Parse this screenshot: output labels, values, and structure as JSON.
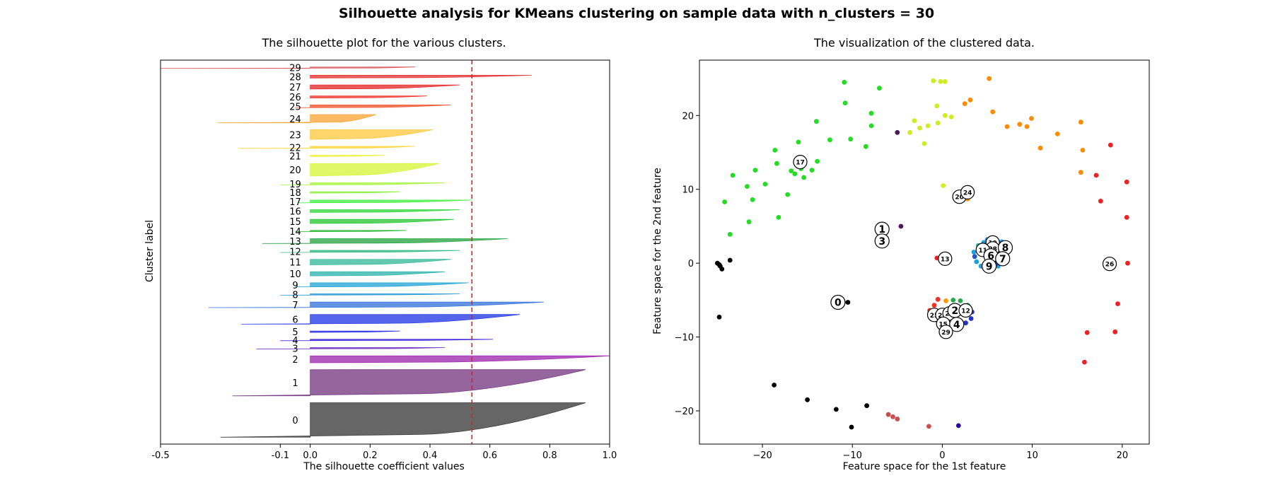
{
  "figure": {
    "suptitle": "Silhouette analysis for KMeans clustering on sample data with n_clusters = 30"
  },
  "chart_data": [
    {
      "type": "bar",
      "subtype": "silhouette",
      "title": "The silhouette plot for the various clusters.",
      "xlabel": "The silhouette coefficient values",
      "ylabel": "Cluster label",
      "xlim": [
        -0.5,
        1.0
      ],
      "xticks": [
        "-0.5",
        "-0.1",
        "0.0",
        "0.2",
        "0.4",
        "0.6",
        "0.8",
        "1.0"
      ],
      "xtick_values": [
        -0.5,
        -0.1,
        0.0,
        0.2,
        0.4,
        0.6,
        0.8,
        1.0
      ],
      "average_silhouette": 0.54,
      "clusters": [
        {
          "label": "0",
          "size": 50,
          "max": 0.92,
          "min": -0.3,
          "color": "#404040"
        },
        {
          "label": "1",
          "size": 38,
          "max": 0.92,
          "min": -0.26,
          "color": "#7a3f86"
        },
        {
          "label": "2",
          "size": 10,
          "max": 1.0,
          "min": 0.0,
          "color": "#a12faf"
        },
        {
          "label": "3",
          "size": 2,
          "max": 0.45,
          "min": -0.18,
          "color": "#6b2fc0"
        },
        {
          "label": "4",
          "size": 2,
          "max": 0.61,
          "min": -0.1,
          "color": "#3a28d8"
        },
        {
          "label": "5",
          "size": 2,
          "max": 0.3,
          "min": 0.0,
          "color": "#2a2ee4"
        },
        {
          "label": "6",
          "size": 14,
          "max": 0.7,
          "min": -0.23,
          "color": "#2b3fe6"
        },
        {
          "label": "7",
          "size": 8,
          "max": 0.78,
          "min": -0.34,
          "color": "#3c78dc"
        },
        {
          "label": "8",
          "size": 2,
          "max": 0.5,
          "min": -0.1,
          "color": "#2a96d8"
        },
        {
          "label": "9",
          "size": 6,
          "max": 0.53,
          "min": -0.05,
          "color": "#2aa8d8"
        },
        {
          "label": "10",
          "size": 6,
          "max": 0.45,
          "min": 0.0,
          "color": "#33b6b0"
        },
        {
          "label": "11",
          "size": 8,
          "max": 0.47,
          "min": 0.0,
          "color": "#3dbb9e"
        },
        {
          "label": "12",
          "size": 3,
          "max": 0.5,
          "min": -0.1,
          "color": "#35b889"
        },
        {
          "label": "13",
          "size": 7,
          "max": 0.66,
          "min": -0.16,
          "color": "#2ea84a"
        },
        {
          "label": "14",
          "size": 2,
          "max": 0.32,
          "min": -0.05,
          "color": "#2ebb3a"
        },
        {
          "label": "15",
          "size": 6,
          "max": 0.48,
          "min": 0.0,
          "color": "#30c93a"
        },
        {
          "label": "16",
          "size": 4,
          "max": 0.5,
          "min": 0.0,
          "color": "#34d83e"
        },
        {
          "label": "17",
          "size": 4,
          "max": 0.54,
          "min": -0.04,
          "color": "#48ef4a"
        },
        {
          "label": "18",
          "size": 2,
          "max": 0.3,
          "min": 0.0,
          "color": "#8bf040"
        },
        {
          "label": "19",
          "size": 3,
          "max": 0.45,
          "min": -0.1,
          "color": "#a8f43c"
        },
        {
          "label": "20",
          "size": 18,
          "max": 0.43,
          "min": 0.0,
          "color": "#d8f540"
        },
        {
          "label": "21",
          "size": 2,
          "max": 0.25,
          "min": 0.0,
          "color": "#eef33a"
        },
        {
          "label": "22",
          "size": 3,
          "max": 0.35,
          "min": -0.24,
          "color": "#fad63e"
        },
        {
          "label": "23",
          "size": 14,
          "max": 0.41,
          "min": 0.0,
          "color": "#fccb46"
        },
        {
          "label": "24",
          "size": 12,
          "max": 0.22,
          "min": -0.31,
          "color": "#fba93e"
        },
        {
          "label": "25",
          "size": 4,
          "max": 0.47,
          "min": -0.05,
          "color": "#ef5a35"
        },
        {
          "label": "26",
          "size": 3,
          "max": 0.39,
          "min": 0.0,
          "color": "#ee3a30"
        },
        {
          "label": "27",
          "size": 6,
          "max": 0.5,
          "min": 0.0,
          "color": "#e53030"
        },
        {
          "label": "28",
          "size": 4,
          "max": 0.74,
          "min": 0.0,
          "color": "#e33a3a"
        },
        {
          "label": "29",
          "size": 2,
          "max": 0.35,
          "min": -0.5,
          "color": "#d95b5b"
        }
      ]
    },
    {
      "type": "scatter",
      "title": "The visualization of the clustered data.",
      "xlabel": "Feature space for the 1st feature",
      "ylabel": "Feature space for the 2nd feature",
      "xlim": [
        -27,
        23
      ],
      "ylim": [
        -24.5,
        27.5
      ],
      "xticks": [
        "−20",
        "−10",
        "0",
        "10",
        "20"
      ],
      "xtick_values": [
        -20,
        -10,
        0,
        10,
        20
      ],
      "yticks": [
        "−20",
        "−10",
        "0",
        "10",
        "20"
      ],
      "ytick_values": [
        -20,
        -10,
        0,
        10,
        20
      ],
      "points": [
        {
          "x": -25,
          "y": 0,
          "c": "#000000"
        },
        {
          "x": -24.7,
          "y": -0.4,
          "c": "#000000"
        },
        {
          "x": -24.5,
          "y": -0.8,
          "c": "#000000"
        },
        {
          "x": -24.8,
          "y": -0.2,
          "c": "#000000"
        },
        {
          "x": -23.6,
          "y": 0.4,
          "c": "#000000"
        },
        {
          "x": -24.8,
          "y": -7.3,
          "c": "#000000"
        },
        {
          "x": -18.7,
          "y": -16.5,
          "c": "#000000"
        },
        {
          "x": -15,
          "y": -18.5,
          "c": "#000000"
        },
        {
          "x": -11.8,
          "y": -19.8,
          "c": "#000000"
        },
        {
          "x": -10.1,
          "y": -22.2,
          "c": "#000000"
        },
        {
          "x": -8.4,
          "y": -19.3,
          "c": "#000000"
        },
        {
          "x": -10.5,
          "y": -5.3,
          "c": "#000000"
        },
        {
          "x": -6,
          "y": -20.5,
          "c": "#c94f4f"
        },
        {
          "x": -5.5,
          "y": -20.8,
          "c": "#c94f4f"
        },
        {
          "x": -5,
          "y": -21.1,
          "c": "#c94f4f"
        },
        {
          "x": -1.5,
          "y": -22.1,
          "c": "#c94f4f"
        },
        {
          "x": 1.8,
          "y": -22,
          "c": "#2a0a9a"
        },
        {
          "x": -6.5,
          "y": 4.2,
          "c": "#6a2a8a"
        },
        {
          "x": -4.6,
          "y": 5,
          "c": "#4a1a5a"
        },
        {
          "x": -5,
          "y": 17.7,
          "c": "#4a1a5a"
        },
        {
          "x": -24.2,
          "y": 8.3,
          "c": "#22dd22"
        },
        {
          "x": -23.6,
          "y": 3.9,
          "c": "#22dd22"
        },
        {
          "x": -23.3,
          "y": 11.9,
          "c": "#22dd22"
        },
        {
          "x": -21.7,
          "y": 10.4,
          "c": "#22dd22"
        },
        {
          "x": -21.5,
          "y": 5.6,
          "c": "#22dd22"
        },
        {
          "x": -21.1,
          "y": 8.6,
          "c": "#22dd22"
        },
        {
          "x": -20.8,
          "y": 12.6,
          "c": "#22dd22"
        },
        {
          "x": -19.7,
          "y": 10.7,
          "c": "#22dd22"
        },
        {
          "x": -18.6,
          "y": 15.3,
          "c": "#22dd22"
        },
        {
          "x": -18.4,
          "y": 13.5,
          "c": "#22dd22"
        },
        {
          "x": -18.2,
          "y": 6.2,
          "c": "#22dd22"
        },
        {
          "x": -17.2,
          "y": 9.3,
          "c": "#22dd22"
        },
        {
          "x": -16.8,
          "y": 12.5,
          "c": "#22dd22"
        },
        {
          "x": -16.4,
          "y": 12.1,
          "c": "#22dd22"
        },
        {
          "x": -16,
          "y": 16.4,
          "c": "#22dd22"
        },
        {
          "x": -15.7,
          "y": 12.8,
          "c": "#22dd22"
        },
        {
          "x": -15.4,
          "y": 11.6,
          "c": "#22dd22"
        },
        {
          "x": -14.5,
          "y": 12.6,
          "c": "#22dd22"
        },
        {
          "x": -14,
          "y": 19.2,
          "c": "#22dd22"
        },
        {
          "x": -13.9,
          "y": 13.8,
          "c": "#22dd22"
        },
        {
          "x": -12.5,
          "y": 16.7,
          "c": "#22dd22"
        },
        {
          "x": -10.9,
          "y": 24.5,
          "c": "#22dd22"
        },
        {
          "x": -10.8,
          "y": 21.7,
          "c": "#22dd22"
        },
        {
          "x": -10.2,
          "y": 16.8,
          "c": "#22dd22"
        },
        {
          "x": -8.5,
          "y": 15.8,
          "c": "#22dd22"
        },
        {
          "x": -7.9,
          "y": 18.6,
          "c": "#22dd22"
        },
        {
          "x": -7.9,
          "y": 20.3,
          "c": "#22dd22"
        },
        {
          "x": -7,
          "y": 23.7,
          "c": "#22dd22"
        },
        {
          "x": -3.6,
          "y": 17.7,
          "c": "#ccee22"
        },
        {
          "x": -3.1,
          "y": 19.3,
          "c": "#ccee22"
        },
        {
          "x": -2.5,
          "y": 18.3,
          "c": "#ccee22"
        },
        {
          "x": -2,
          "y": 16.2,
          "c": "#ccee22"
        },
        {
          "x": -1.6,
          "y": 18.6,
          "c": "#ccee22"
        },
        {
          "x": -1,
          "y": 24.7,
          "c": "#ccee22"
        },
        {
          "x": -0.6,
          "y": 21.3,
          "c": "#ccee22"
        },
        {
          "x": -0.2,
          "y": 24.6,
          "c": "#ccee22"
        },
        {
          "x": 0.3,
          "y": 24.6,
          "c": "#ccee22"
        },
        {
          "x": 0.3,
          "y": 20,
          "c": "#ccee22"
        },
        {
          "x": -0.5,
          "y": 19,
          "c": "#ccee22"
        },
        {
          "x": 1,
          "y": 19.8,
          "c": "#ccee22"
        },
        {
          "x": 0.1,
          "y": 10.5,
          "c": "#ccee22"
        },
        {
          "x": 2.5,
          "y": 21.6,
          "c": "#ff8c00"
        },
        {
          "x": 3.1,
          "y": 22.1,
          "c": "#ff8c00"
        },
        {
          "x": 5.2,
          "y": 25,
          "c": "#ff8c00"
        },
        {
          "x": 5.6,
          "y": 20.5,
          "c": "#ff8c00"
        },
        {
          "x": 7.2,
          "y": 18.5,
          "c": "#ff8c00"
        },
        {
          "x": 8.6,
          "y": 18.8,
          "c": "#ff8c00"
        },
        {
          "x": 9.4,
          "y": 18.5,
          "c": "#ff8c00"
        },
        {
          "x": 9.9,
          "y": 19.6,
          "c": "#ff8c00"
        },
        {
          "x": 10.9,
          "y": 15.6,
          "c": "#ff8c00"
        },
        {
          "x": 12.8,
          "y": 17.5,
          "c": "#ff8c00"
        },
        {
          "x": 15.4,
          "y": 19.1,
          "c": "#ff8c00"
        },
        {
          "x": 15.4,
          "y": 12.3,
          "c": "#ff8c00"
        },
        {
          "x": 15.6,
          "y": 15.3,
          "c": "#ff8c00"
        },
        {
          "x": 2.8,
          "y": 8.7,
          "c": "#ff8c00"
        },
        {
          "x": 17.1,
          "y": 11.9,
          "c": "#ee2222"
        },
        {
          "x": 17.6,
          "y": 8.4,
          "c": "#ee2222"
        },
        {
          "x": 18.7,
          "y": 16,
          "c": "#ee2222"
        },
        {
          "x": 20.5,
          "y": 11,
          "c": "#ee2222"
        },
        {
          "x": 20.5,
          "y": 6.2,
          "c": "#ee2222"
        },
        {
          "x": 20.6,
          "y": 0,
          "c": "#ee2222"
        },
        {
          "x": 19.5,
          "y": -5.5,
          "c": "#ee2222"
        },
        {
          "x": 19.2,
          "y": -9.3,
          "c": "#ee2222"
        },
        {
          "x": 16.1,
          "y": -9.4,
          "c": "#ee2222"
        },
        {
          "x": 15.8,
          "y": -13.4,
          "c": "#ee2222"
        },
        {
          "x": -0.6,
          "y": 0.7,
          "c": "#ee2222"
        },
        {
          "x": 3.5,
          "y": 1.5,
          "c": "#1a9fe0"
        },
        {
          "x": 3.8,
          "y": 0.2,
          "c": "#1a9fe0"
        },
        {
          "x": 4.3,
          "y": -0.4,
          "c": "#1a9fe0"
        },
        {
          "x": 4.6,
          "y": 2.8,
          "c": "#1a9fe0"
        },
        {
          "x": 5,
          "y": 3.2,
          "c": "#1a9fe0"
        },
        {
          "x": 5.6,
          "y": -0.6,
          "c": "#1a9fe0"
        },
        {
          "x": 6.2,
          "y": -0.4,
          "c": "#1a9fe0"
        },
        {
          "x": 6.8,
          "y": 0.1,
          "c": "#1a9fe0"
        },
        {
          "x": 7,
          "y": 1.5,
          "c": "#1a9fe0"
        },
        {
          "x": 6.6,
          "y": 2.9,
          "c": "#1a9fe0"
        },
        {
          "x": 4,
          "y": 2.4,
          "c": "#33bbaa"
        },
        {
          "x": 5.7,
          "y": 3.3,
          "c": "#88ee33"
        },
        {
          "x": 3.6,
          "y": 0.9,
          "c": "#2255cc"
        },
        {
          "x": 6,
          "y": -0.1,
          "c": "#2255cc"
        },
        {
          "x": -1.4,
          "y": -6.4,
          "c": "#ee3322"
        },
        {
          "x": -0.9,
          "y": -5.7,
          "c": "#ee3322"
        },
        {
          "x": -0.5,
          "y": -4.9,
          "c": "#ee3322"
        },
        {
          "x": 0.4,
          "y": -5.1,
          "c": "#ff9900"
        },
        {
          "x": 1.2,
          "y": -5,
          "c": "#22aa44"
        },
        {
          "x": 2,
          "y": -5.1,
          "c": "#22aa44"
        },
        {
          "x": 2.8,
          "y": -5.7,
          "c": "#22aa44"
        },
        {
          "x": 3.3,
          "y": -6.6,
          "c": "#2233cc"
        },
        {
          "x": 3.2,
          "y": -7.5,
          "c": "#2233cc"
        },
        {
          "x": 2.6,
          "y": -8.1,
          "c": "#2233cc"
        },
        {
          "x": 1.8,
          "y": -8.5,
          "c": "#33bb88"
        },
        {
          "x": 0.9,
          "y": -8.4,
          "c": "#33bb88"
        },
        {
          "x": 0.2,
          "y": -8,
          "c": "#22aa44"
        },
        {
          "x": -0.6,
          "y": -7.7,
          "c": "#ee3322"
        },
        {
          "x": -1.2,
          "y": -7.1,
          "c": "#ee3322"
        },
        {
          "x": 0.9,
          "y": -6.1,
          "c": "#aa22cc"
        },
        {
          "x": 1.6,
          "y": -6.6,
          "c": "#ffaa33"
        }
      ],
      "centers": [
        {
          "label": "0",
          "x": -11.6,
          "y": -5.3
        },
        {
          "label": "1",
          "x": -6.7,
          "y": 4.6
        },
        {
          "label": "3",
          "x": -6.7,
          "y": 3
        },
        {
          "label": "17",
          "x": -15.8,
          "y": 13.7
        },
        {
          "label": "20",
          "x": 1.9,
          "y": 9
        },
        {
          "label": "24",
          "x": 2.8,
          "y": 9.6
        },
        {
          "label": "13",
          "x": 0.3,
          "y": 0.6
        },
        {
          "label": "19",
          "x": 5.6,
          "y": 2.8
        },
        {
          "label": "28",
          "x": 5.6,
          "y": 2
        },
        {
          "label": "8",
          "x": 7,
          "y": 2.1
        },
        {
          "label": "11",
          "x": 4.5,
          "y": 1.8
        },
        {
          "label": "6",
          "x": 5.4,
          "y": 1
        },
        {
          "label": "7",
          "x": 6.7,
          "y": 0.6
        },
        {
          "label": "9",
          "x": 5.2,
          "y": -0.4
        },
        {
          "label": "26",
          "x": 18.6,
          "y": -0.1
        },
        {
          "label": "25",
          "x": -0.9,
          "y": -7
        },
        {
          "label": "27",
          "x": 0,
          "y": -7
        },
        {
          "label": "22",
          "x": 0.8,
          "y": -6.8
        },
        {
          "label": "2",
          "x": 1.4,
          "y": -6.4
        },
        {
          "label": "12",
          "x": 2.6,
          "y": -6.4
        },
        {
          "label": "15",
          "x": 0.1,
          "y": -8.2
        },
        {
          "label": "4",
          "x": 1.6,
          "y": -8.3
        },
        {
          "label": "29",
          "x": 0.4,
          "y": -9.3
        }
      ]
    }
  ]
}
